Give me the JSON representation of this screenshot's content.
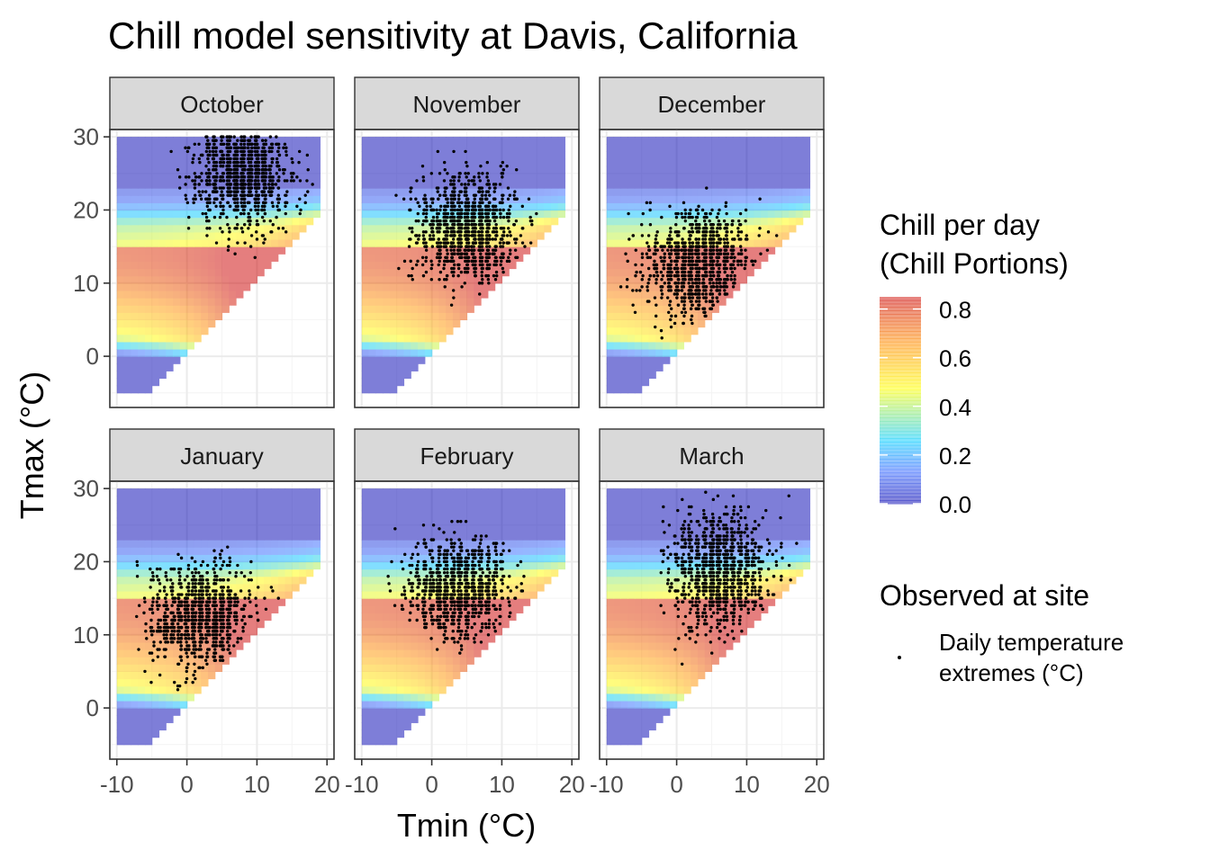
{
  "title": "Chill model sensitivity at Davis, California",
  "chart_data": {
    "type": "heatmap",
    "title": "Chill model sensitivity at Davis, California",
    "xlabel": "Tmin (°C)",
    "ylabel": "Tmax (°C)",
    "xlim": [
      -11,
      21
    ],
    "ylim": [
      -7,
      31
    ],
    "x_ticks": [
      "-10",
      "0",
      "10",
      "20"
    ],
    "y_ticks": [
      "0",
      "10",
      "20",
      "30"
    ],
    "grid": true,
    "facets": [
      "October",
      "November",
      "December",
      "January",
      "February",
      "March"
    ],
    "facet_layout": {
      "rows": 2,
      "cols": 3
    },
    "heatmap_tiles": {
      "tmin_range": [
        -9.5,
        19
      ],
      "tmax_range": [
        -4.5,
        29.5
      ],
      "constraint": "Tmax > Tmin",
      "value": "Chill per day (Chill Portions)",
      "description": "Chill per day is ~0 for Tmax below about 0 °C and above about 23 °C; highest (~0.8) for Tmax ~5-12 °C with Tmin near Tmax"
    },
    "color_legend": {
      "title": "Chill per day\n(Chill Portions)",
      "title_lines": [
        "Chill per day",
        "(Chill Portions)"
      ],
      "ticks": [
        "0.0",
        "0.2",
        "0.4",
        "0.6",
        "0.8"
      ],
      "range": [
        0,
        0.85
      ],
      "palette": [
        "#0000b3",
        "#3366ff",
        "#00ccff",
        "#ffff00",
        "#ff8800",
        "#cc0000"
      ],
      "alpha": 0.5
    },
    "points_legend": {
      "title": "Observed at site",
      "label": "Daily temperature\nextremes (°C)",
      "label_lines": [
        "Daily temperature",
        "extremes (°C)"
      ]
    },
    "observed_point_clouds": [
      {
        "facet": "October",
        "tmin_center": 8,
        "tmax_center": 25,
        "tmin_sd": 3.3,
        "tmax_sd": 3.6,
        "tmin_range": [
          -2,
          19
        ],
        "tmax_range": [
          10,
          30
        ],
        "n": 1100
      },
      {
        "facet": "November",
        "tmin_center": 5,
        "tmax_center": 17.5,
        "tmin_sd": 3.6,
        "tmax_sd": 3.6,
        "tmin_range": [
          -5,
          15
        ],
        "tmax_range": [
          7,
          30
        ],
        "n": 1100
      },
      {
        "facet": "December",
        "tmin_center": 3,
        "tmax_center": 12.5,
        "tmin_sd": 3.6,
        "tmax_sd": 3.6,
        "tmin_range": [
          -8,
          14
        ],
        "tmax_range": [
          -1.5,
          23
        ],
        "n": 1000
      },
      {
        "facet": "January",
        "tmin_center": 2,
        "tmax_center": 12.5,
        "tmin_sd": 3.6,
        "tmax_sd": 3.5,
        "tmin_range": [
          -7,
          14
        ],
        "tmax_range": [
          2,
          25
        ],
        "n": 1000
      },
      {
        "facet": "February",
        "tmin_center": 4,
        "tmax_center": 16.5,
        "tmin_sd": 3.5,
        "tmax_sd": 3.4,
        "tmin_range": [
          -6,
          13
        ],
        "tmax_range": [
          4,
          25.5
        ],
        "n": 1000
      },
      {
        "facet": "March",
        "tmin_center": 6,
        "tmax_center": 19,
        "tmin_sd": 3.5,
        "tmax_sd": 4.0,
        "tmin_range": [
          -2,
          17
        ],
        "tmax_range": [
          6,
          29.5
        ],
        "n": 1100
      }
    ]
  }
}
